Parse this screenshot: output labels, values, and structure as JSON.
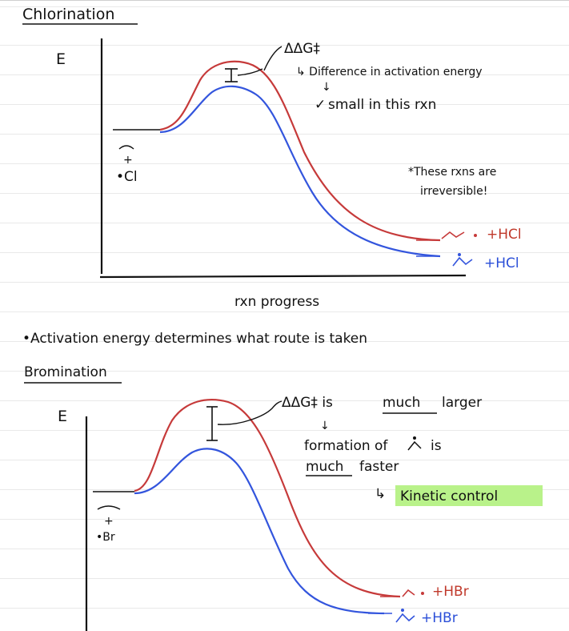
{
  "colors": {
    "red": "#c63a3a",
    "blue": "#3355dd",
    "highlight": "#b9f28a",
    "ink": "#111111"
  },
  "chlorination": {
    "title": "Chlorination",
    "y_axis": "E",
    "reactant": "+\n•Cl",
    "reactant_plus": "+",
    "reactant_radical": "•Cl",
    "ddg": "ΔΔG‡",
    "ddg_note": "↳ Difference in activation energy",
    "ddg_note2": "small in this rxn",
    "irreversible_1": "*These rxns are",
    "irreversible_2": "irreversible!",
    "product_red": "+HCl",
    "product_blue": "+HCl",
    "x_axis": "rxn progress"
  },
  "statement": "•Activation energy determines what route is taken",
  "bromination": {
    "title": "Bromination",
    "y_axis": "E",
    "reactant_plus": "+",
    "reactant_radical": "•Br",
    "ddg": "ΔΔG‡ is",
    "ddg_much": "much",
    "ddg_rest": "larger",
    "formation": "formation of",
    "formation_is": "is",
    "much": "much",
    "faster": "faster",
    "arrow": "↳",
    "kinetic": "Kinetic control",
    "product_red": "+HBr",
    "product_blue": "+HBr"
  }
}
